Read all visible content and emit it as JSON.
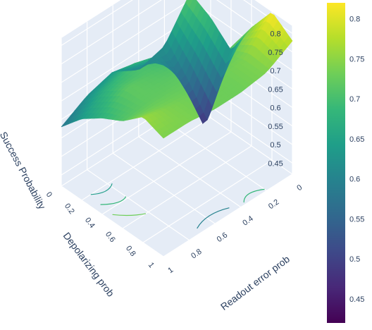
{
  "chart_data": {
    "type": "surface",
    "title": "",
    "axes": {
      "x": {
        "label": "Readout error prob",
        "ticks": [
          "0",
          "0.2",
          "0.4",
          "0.6",
          "0.8",
          "1"
        ],
        "range": [
          0,
          1
        ]
      },
      "y": {
        "label": "Depolarizing prob",
        "ticks": [
          "0",
          "0.2",
          "0.4",
          "0.6",
          "0.8",
          "1"
        ],
        "range": [
          0,
          1
        ]
      },
      "z": {
        "label": "Success Probability",
        "ticks": [
          "0.45",
          "0.5",
          "0.55",
          "0.6",
          "0.65",
          "0.7",
          "0.75",
          "0.8"
        ],
        "range": [
          0.42,
          0.82
        ]
      }
    },
    "colorbar": {
      "colorscale": "Viridis",
      "range": [
        0.42,
        0.82
      ],
      "ticks": [
        "0.45",
        "0.5",
        "0.55",
        "0.6",
        "0.65",
        "0.7",
        "0.75",
        "0.8"
      ],
      "colors": [
        "#440154",
        "#482878",
        "#3e4989",
        "#31688e",
        "#26828e",
        "#1f9e89",
        "#35b779",
        "#6ece58",
        "#b5de2b",
        "#fde725"
      ]
    },
    "grid": true,
    "contours_on_floor": true,
    "surface": {
      "x": [
        0,
        0.2,
        0.4,
        0.6,
        0.8,
        1
      ],
      "y": [
        0,
        0.2,
        0.4,
        0.6,
        0.8,
        1
      ],
      "z": [
        [
          0.72,
          0.62,
          0.6,
          0.64,
          0.62,
          0.58
        ],
        [
          0.69,
          0.55,
          0.68,
          0.7,
          0.68,
          0.64
        ],
        [
          0.64,
          0.47,
          0.7,
          0.71,
          0.72,
          0.68
        ],
        [
          0.74,
          0.72,
          0.72,
          0.72,
          0.72,
          0.71
        ],
        [
          0.82,
          0.74,
          0.73,
          0.73,
          0.74,
          0.76
        ],
        [
          0.78,
          0.74,
          0.73,
          0.73,
          0.74,
          0.74
        ]
      ]
    }
  }
}
